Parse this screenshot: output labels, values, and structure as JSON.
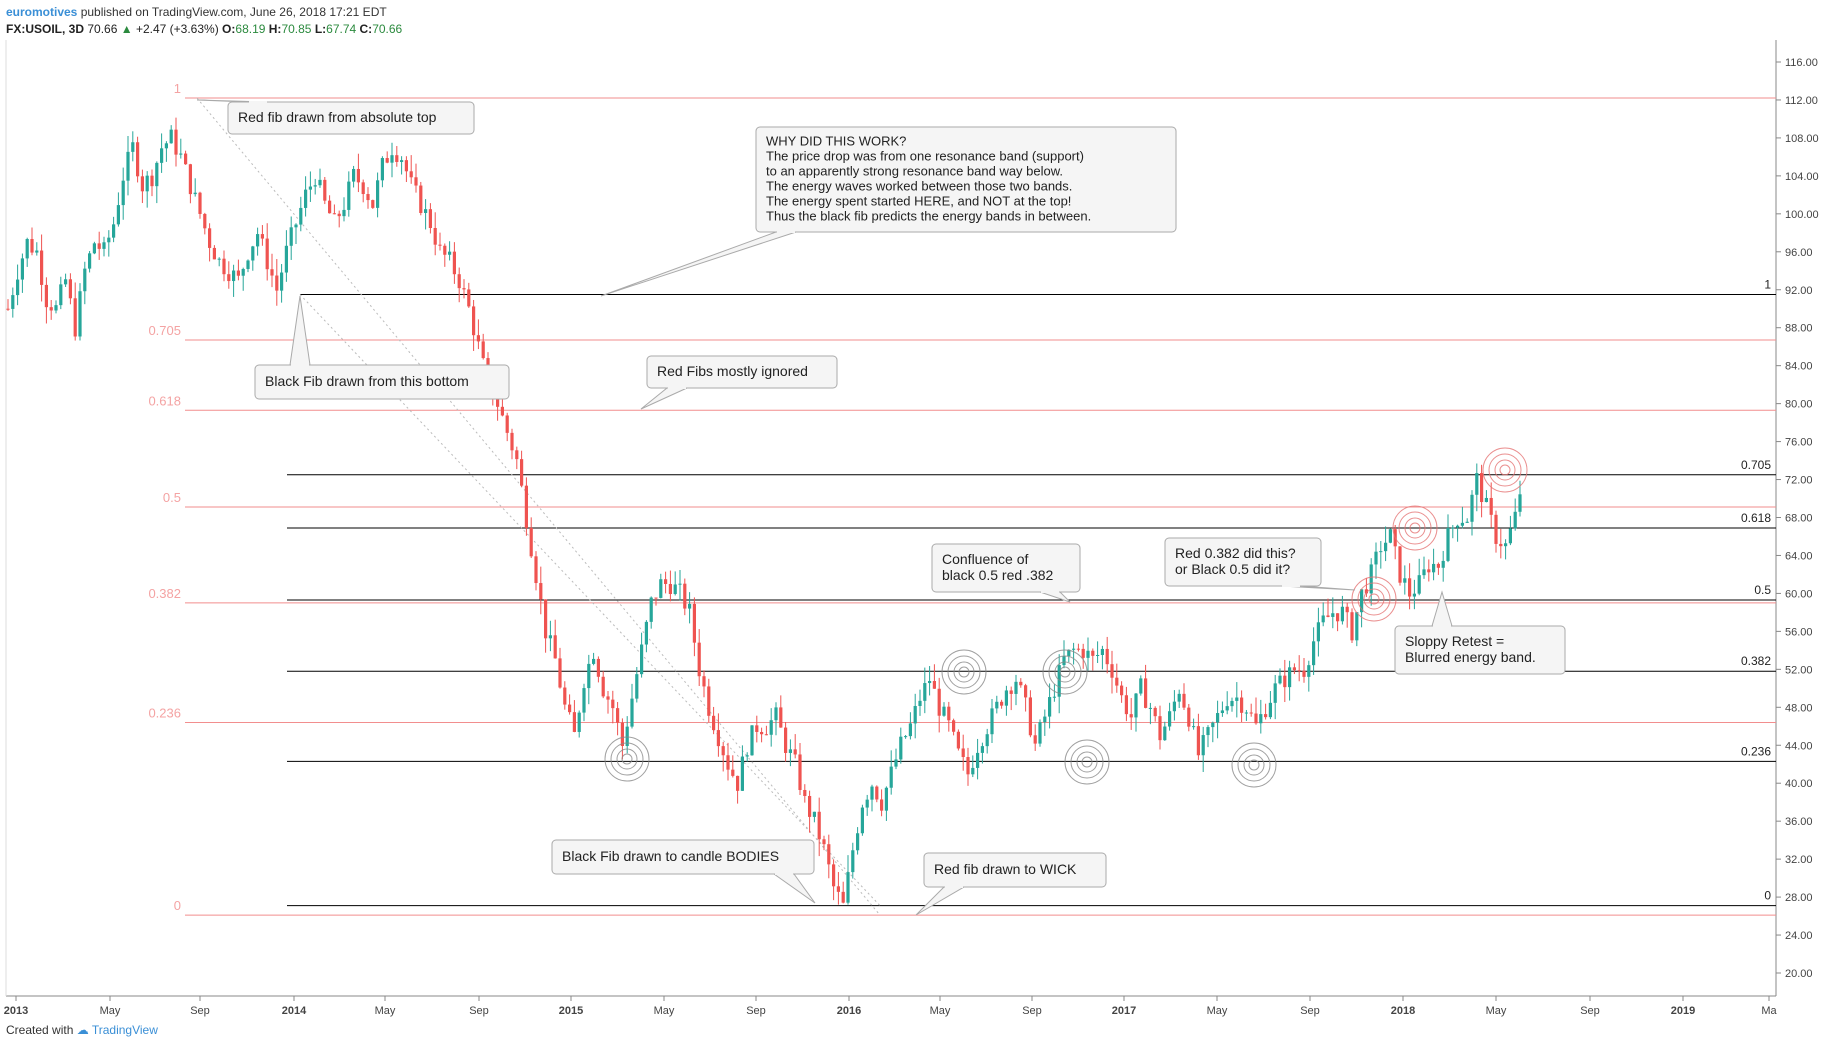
{
  "header": {
    "author": "euromotives",
    "published": "published on TradingView.com, June 26, 2018 17:21 EDT",
    "symbol": "FX:USOIL, 3D",
    "last": "70.66",
    "change": "+2.47 (+3.63%)",
    "o_label": "O:",
    "o_value": "68.19",
    "h_label": "H:",
    "h_value": "70.85",
    "l_label": "L:",
    "l_value": "67.74",
    "c_label": "C:",
    "c_value": "70.66"
  },
  "footer": {
    "created": "Created with",
    "brand": "TradingView"
  },
  "colors": {
    "up": "#26a69a",
    "down": "#ef5350",
    "red_fib": "#f28e8e",
    "red_fib_label": "#f4a3a3",
    "black_fib": "#000000"
  },
  "chart_data": {
    "type": "candlestick",
    "title": "",
    "ylim": [
      18,
      118
    ],
    "y_ticks": [
      "116.00",
      "112.00",
      "108.00",
      "104.00",
      "100.00",
      "96.00",
      "92.00",
      "88.00",
      "84.00",
      "80.00",
      "76.00",
      "72.00",
      "68.00",
      "64.00",
      "60.00",
      "56.00",
      "52.00",
      "48.00",
      "44.00",
      "40.00",
      "36.00",
      "32.00",
      "28.00",
      "24.00",
      "20.00"
    ],
    "x_ticks": [
      "2013",
      "May",
      "Sep",
      "2014",
      "May",
      "Sep",
      "2015",
      "May",
      "Sep",
      "2016",
      "May",
      "Sep",
      "2017",
      "May",
      "Sep",
      "2018",
      "May",
      "Sep",
      "2019",
      "Ma"
    ],
    "red_fib": {
      "levels": [
        {
          "label": "1",
          "price": 112.2
        },
        {
          "label": "0.705",
          "price": 86.7
        },
        {
          "label": "0.618",
          "price": 79.3
        },
        {
          "label": "0.5",
          "price": 69.1
        },
        {
          "label": "0.382",
          "price": 59.0
        },
        {
          "label": "0.236",
          "price": 46.4
        },
        {
          "label": "0",
          "price": 26.1
        }
      ]
    },
    "black_fib": {
      "levels": [
        {
          "label": "1",
          "price": 91.5
        },
        {
          "label": "0.705",
          "price": 72.5
        },
        {
          "label": "0.618",
          "price": 66.9
        },
        {
          "label": "0.5",
          "price": 59.3
        },
        {
          "label": "0.382",
          "price": 51.8
        },
        {
          "label": "0.236",
          "price": 42.3
        },
        {
          "label": "0",
          "price": 27.1
        }
      ]
    },
    "path": [
      [
        0,
        90
      ],
      [
        2,
        94
      ],
      [
        4,
        97
      ],
      [
        6,
        96
      ],
      [
        8,
        91
      ],
      [
        10,
        90
      ],
      [
        12,
        93
      ],
      [
        14,
        88
      ],
      [
        16,
        94
      ],
      [
        18,
        97
      ],
      [
        20,
        96
      ],
      [
        22,
        99
      ],
      [
        24,
        104
      ],
      [
        26,
        107
      ],
      [
        28,
        103
      ],
      [
        30,
        104
      ],
      [
        32,
        107
      ],
      [
        34,
        108
      ],
      [
        36,
        106
      ],
      [
        38,
        103
      ],
      [
        40,
        100
      ],
      [
        42,
        97
      ],
      [
        44,
        95
      ],
      [
        46,
        94
      ],
      [
        48,
        93
      ],
      [
        50,
        96
      ],
      [
        52,
        98
      ],
      [
        54,
        95
      ],
      [
        56,
        92
      ],
      [
        58,
        96
      ],
      [
        60,
        99
      ],
      [
        62,
        102
      ],
      [
        64,
        104
      ],
      [
        66,
        101
      ],
      [
        68,
        99
      ],
      [
        70,
        101
      ],
      [
        72,
        104
      ],
      [
        74,
        103
      ],
      [
        76,
        101
      ],
      [
        78,
        105
      ],
      [
        80,
        107
      ],
      [
        82,
        106
      ],
      [
        84,
        103
      ],
      [
        86,
        101
      ],
      [
        88,
        99
      ],
      [
        90,
        96
      ],
      [
        92,
        95
      ],
      [
        94,
        93
      ],
      [
        96,
        90
      ],
      [
        98,
        86
      ],
      [
        100,
        82
      ],
      [
        102,
        80
      ],
      [
        104,
        77
      ],
      [
        106,
        74
      ],
      [
        108,
        68
      ],
      [
        110,
        62
      ],
      [
        112,
        56
      ],
      [
        114,
        53
      ],
      [
        116,
        48
      ],
      [
        118,
        45
      ],
      [
        120,
        51
      ],
      [
        122,
        54
      ],
      [
        124,
        50
      ],
      [
        126,
        48
      ],
      [
        128,
        44
      ],
      [
        130,
        49
      ],
      [
        132,
        54
      ],
      [
        134,
        59
      ],
      [
        136,
        61
      ],
      [
        138,
        61
      ],
      [
        140,
        60
      ],
      [
        142,
        58
      ],
      [
        144,
        52
      ],
      [
        146,
        48
      ],
      [
        148,
        45
      ],
      [
        150,
        42
      ],
      [
        152,
        40
      ],
      [
        154,
        44
      ],
      [
        156,
        46
      ],
      [
        158,
        46
      ],
      [
        160,
        47
      ],
      [
        162,
        44
      ],
      [
        164,
        42
      ],
      [
        166,
        38
      ],
      [
        168,
        36
      ],
      [
        170,
        33
      ],
      [
        172,
        29
      ],
      [
        174,
        27
      ],
      [
        176,
        33
      ],
      [
        178,
        38
      ],
      [
        180,
        40
      ],
      [
        182,
        38
      ],
      [
        184,
        41
      ],
      [
        186,
        44
      ],
      [
        188,
        46
      ],
      [
        190,
        49
      ],
      [
        192,
        51
      ],
      [
        194,
        48
      ],
      [
        196,
        46
      ],
      [
        198,
        43
      ],
      [
        200,
        41
      ],
      [
        202,
        44
      ],
      [
        204,
        46
      ],
      [
        206,
        48
      ],
      [
        208,
        50
      ],
      [
        210,
        51
      ],
      [
        212,
        48
      ],
      [
        214,
        44
      ],
      [
        216,
        47
      ],
      [
        218,
        50
      ],
      [
        220,
        53
      ],
      [
        222,
        54
      ],
      [
        224,
        54
      ],
      [
        226,
        53
      ],
      [
        228,
        54
      ],
      [
        230,
        52
      ],
      [
        232,
        49
      ],
      [
        234,
        47
      ],
      [
        236,
        50
      ],
      [
        238,
        48
      ],
      [
        240,
        45
      ],
      [
        242,
        47
      ],
      [
        244,
        50
      ],
      [
        246,
        47
      ],
      [
        248,
        43
      ],
      [
        250,
        45
      ],
      [
        252,
        47
      ],
      [
        254,
        49
      ],
      [
        256,
        49
      ],
      [
        258,
        48
      ],
      [
        260,
        46
      ],
      [
        262,
        48
      ],
      [
        264,
        50
      ],
      [
        266,
        51
      ],
      [
        268,
        52
      ],
      [
        270,
        52
      ],
      [
        272,
        55
      ],
      [
        274,
        57
      ],
      [
        276,
        58
      ],
      [
        278,
        58
      ],
      [
        280,
        56
      ],
      [
        282,
        60
      ],
      [
        284,
        62
      ],
      [
        286,
        65
      ],
      [
        288,
        66
      ],
      [
        290,
        62
      ],
      [
        292,
        60
      ],
      [
        294,
        61
      ],
      [
        296,
        63
      ],
      [
        298,
        63
      ],
      [
        300,
        66
      ],
      [
        302,
        68
      ],
      [
        304,
        68
      ],
      [
        306,
        72
      ],
      [
        308,
        69
      ],
      [
        310,
        66
      ],
      [
        312,
        65
      ],
      [
        314,
        68
      ],
      [
        315,
        70.7
      ]
    ],
    "annotations": [
      {
        "text": "Red fib drawn from absolute top"
      },
      {
        "text": "Black Fib drawn from this bottom"
      },
      {
        "text": "WHY DID THIS WORK?\nThe price drop was from one resonance band (support)\nto an apparently strong resonance band way below.\nThe energy waves worked between those two bands.\nThe energy spent started HERE, and NOT at the top!\nThus the black fib predicts the energy bands in between."
      },
      {
        "text": "Red Fibs mostly ignored"
      },
      {
        "text": "Confluence of\nblack 0.5 red .382"
      },
      {
        "text": "Red 0.382 did this?\nor Black 0.5 did it?"
      },
      {
        "text": "Sloppy Retest =\nBlurred energy band."
      },
      {
        "text": "Black Fib drawn to candle BODIES"
      },
      {
        "text": "Red fib drawn to WICK"
      }
    ]
  }
}
